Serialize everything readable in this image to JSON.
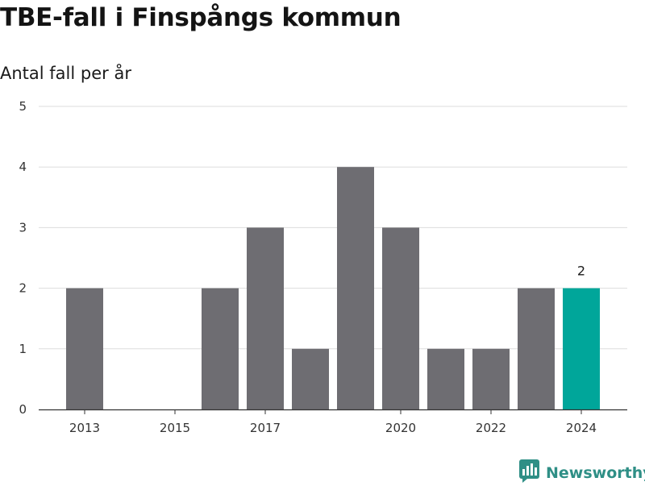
{
  "chart_data": {
    "type": "bar",
    "title": "TBE-fall i Finspångs kommun",
    "subtitle": "Antal fall per år",
    "xlabel": "",
    "ylabel": "",
    "categories": [
      "2013",
      "2014",
      "2015",
      "2016",
      "2017",
      "2018",
      "2019",
      "2020",
      "2021",
      "2022",
      "2023",
      "2024"
    ],
    "values": [
      2,
      0,
      0,
      2,
      3,
      1,
      4,
      3,
      1,
      1,
      2,
      2
    ],
    "x_tick_labels": [
      "2013",
      "2015",
      "2017",
      "2020",
      "2022",
      "2024"
    ],
    "y_ticks": [
      0,
      1,
      2,
      3,
      4,
      5
    ],
    "ylim": [
      0,
      5
    ],
    "grid": "horizontal",
    "highlight_category": "2024",
    "highlight_label": "2",
    "colors": {
      "bar": "#6e6d72",
      "highlight": "#00a69a",
      "grid": "#dddddd",
      "axis": "#333333"
    }
  },
  "branding": {
    "logo_text": "Newsworthy",
    "logo_icon": "newsworthy-bar-chart-icon",
    "logo_color": "#2f8f86"
  }
}
